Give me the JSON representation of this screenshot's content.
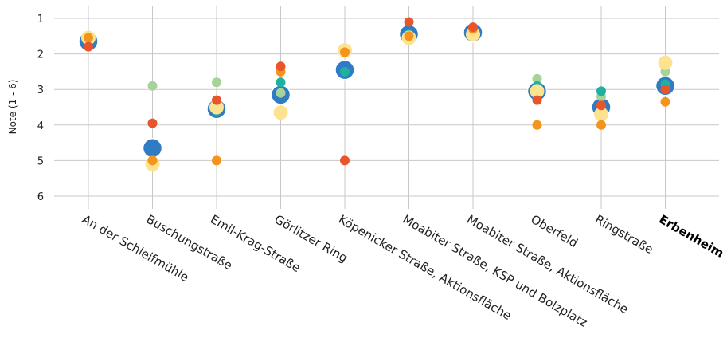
{
  "chart_data": {
    "type": "scatter",
    "title": "",
    "xlabel": "",
    "ylabel": "Note (1 - 6)",
    "ylim": [
      0.6,
      6.5
    ],
    "y_reversed": true,
    "yticks": [
      "1",
      "2",
      "3",
      "4",
      "5",
      "6"
    ],
    "grid": true,
    "legend": "none",
    "highlight_category": "Erbenheim",
    "categories": [
      "An der Schleifmühle",
      "Buschungstraße",
      "Emil-Krag-Straße",
      "Görlitzer Ring",
      "Köpenicker Straße, Aktionsfläche",
      "Moabiter Straße, KSP und Bolzplatz",
      "Moabiter Straße, Aktionsfläche",
      "Oberfeld",
      "Ringstraße",
      "Erbenheim"
    ],
    "colors": {
      "average": "#2f7bc4",
      "light_green": "#a6d39a",
      "teal": "#1fb0a0",
      "yellow": "#fde38f",
      "orange": "#f5941d",
      "red": "#e8552a"
    },
    "series": [
      {
        "color_key": "average",
        "size": "large",
        "values": [
          1.65,
          4.65,
          3.55,
          3.15,
          2.45,
          1.45,
          1.4,
          3.05,
          3.5,
          2.9
        ]
      },
      {
        "color_key": "light_green",
        "size": "small",
        "values": [
          1.5,
          2.9,
          2.8,
          3.1,
          1.95,
          1.5,
          1.5,
          2.7,
          3.2,
          2.5
        ]
      },
      {
        "color_key": "teal",
        "size": "small",
        "values": [
          1.5,
          5.05,
          3.6,
          2.8,
          2.5,
          1.45,
          1.35,
          2.9,
          3.05,
          2.85
        ]
      },
      {
        "color_key": "yellow",
        "size": "medium",
        "values": [
          1.55,
          5.1,
          3.5,
          3.65,
          1.9,
          1.55,
          1.45,
          3.05,
          3.7,
          2.25
        ]
      },
      {
        "color_key": "orange",
        "size": "small",
        "values": [
          1.55,
          5.0,
          5.0,
          2.5,
          1.95,
          1.5,
          1.3,
          4.0,
          4.0,
          3.35
        ]
      },
      {
        "color_key": "red",
        "size": "small",
        "values": [
          1.8,
          3.95,
          3.3,
          2.35,
          5.0,
          1.1,
          1.25,
          3.3,
          3.45,
          3.0
        ]
      }
    ]
  }
}
